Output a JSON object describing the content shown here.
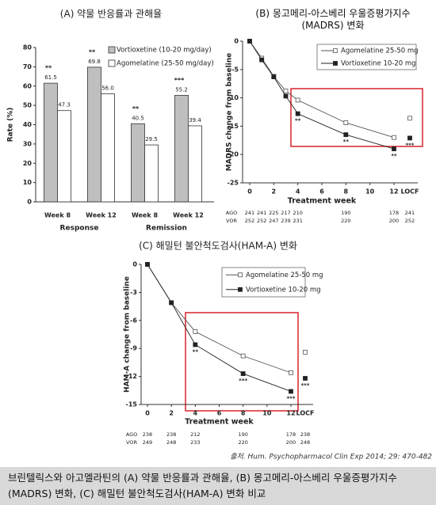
{
  "chart_data": [
    {
      "type": "bar",
      "title": "(A) 약물 반응률과 관해율",
      "y_label": "Rate (%)",
      "categories": [
        "Week 8",
        "Week 12",
        "Week 8",
        "Week 12"
      ],
      "groups": [
        "Response",
        "Remission"
      ],
      "series": [
        {
          "name": "Vortioxetine (10-20 mg/day)",
          "color": "#bfbfbf",
          "values": [
            61.5,
            69.8,
            40.5,
            55.2
          ],
          "significance": [
            "**",
            "**",
            "**",
            "***"
          ]
        },
        {
          "name": "Agomelatine (25-50 mg/day)",
          "color": "#ffffff",
          "values": [
            47.3,
            56.0,
            29.5,
            39.4
          ],
          "value_labels": [
            "47.3",
            "56.0",
            "29.5",
            "39.4"
          ]
        }
      ],
      "ylim": [
        0,
        80
      ],
      "yticks": [
        0,
        10,
        20,
        30,
        40,
        50,
        60,
        70,
        80
      ]
    },
    {
      "type": "line",
      "title": "(B) 몽고메리-아스베리 우울증평가지수 (MADRS) 변화",
      "x_label": "Treatment week",
      "y_label": "MADRS change from baseline",
      "x": [
        0,
        1,
        2,
        3,
        4,
        8,
        12
      ],
      "xlim": [
        0,
        12
      ],
      "xticks": [
        0,
        2,
        4,
        6,
        8,
        10,
        12
      ],
      "locf_label": "LOCF",
      "ylim": [
        -25,
        0
      ],
      "yticks": [
        0,
        -5,
        -10,
        -15,
        -20,
        -25
      ],
      "series": [
        {
          "name": "Agomelatine 25-50 mg",
          "color": "#555555",
          "marker": "open",
          "values": [
            0,
            -3,
            -6.2,
            -8.8,
            -10.4,
            -14.4,
            -17
          ],
          "locf": -13.6
        },
        {
          "name": "Vortioxetine 10-20 mg",
          "color": "#222222",
          "marker": "filled",
          "values": [
            0,
            -3.3,
            -6.3,
            -9.7,
            -12.8,
            -16.5,
            -19
          ],
          "locf": -17.1,
          "annotations": [
            {
              "x": 4,
              "text": "**"
            },
            {
              "x": 8,
              "text": "**"
            },
            {
              "x": 12,
              "text": "**"
            }
          ],
          "locf_annotation": "***"
        }
      ],
      "n_table": {
        "x": [
          0,
          1,
          2,
          3,
          4,
          8,
          12
        ],
        "rows": [
          {
            "name": "AGO",
            "values": [
              241,
              241,
              225,
              217,
              210,
              190,
              178
            ],
            "locf": 241
          },
          {
            "name": "VOR",
            "values": [
              252,
              252,
              247,
              239,
              231,
              220,
              200
            ],
            "locf": 252
          }
        ]
      }
    },
    {
      "type": "line",
      "title": "(C) 해밀턴 불안척도검사(HAM-A) 변화",
      "x_label": "Treatment week",
      "y_label": "HAM-A change from baseline",
      "x": [
        0,
        2,
        4,
        8,
        12
      ],
      "xlim": [
        0,
        12
      ],
      "xticks": [
        0,
        2,
        4,
        6,
        8,
        10,
        12
      ],
      "locf_label": "LOCF",
      "ylim": [
        -15,
        0
      ],
      "yticks": [
        0,
        -3,
        -6,
        -9,
        -12,
        -15
      ],
      "series": [
        {
          "name": "Agomelatine 25-50 mg",
          "color": "#555555",
          "marker": "open",
          "values": [
            0,
            -4.1,
            -7.2,
            -9.8,
            -11.6
          ],
          "locf": -9.4
        },
        {
          "name": "Vortioxetine 10-20 mg",
          "color": "#222222",
          "marker": "filled",
          "values": [
            0,
            -4.1,
            -8.6,
            -11.7,
            -13.6
          ],
          "locf": -12.2,
          "annotations": [
            {
              "x": 4,
              "text": "**"
            },
            {
              "x": 8,
              "text": "***"
            },
            {
              "x": 12,
              "text": "***"
            }
          ],
          "locf_annotation": "***"
        }
      ],
      "n_table": {
        "x": [
          0,
          2,
          4,
          8,
          12
        ],
        "rows": [
          {
            "name": "AGO",
            "values": [
              238,
              238,
              212,
              190,
              178
            ],
            "locf": 238
          },
          {
            "name": "VOR",
            "values": [
              249,
              248,
              233,
              220,
              200
            ],
            "locf": 248
          }
        ]
      }
    }
  ],
  "source": "출처. Hum. Psychopharmacol Clin Exp 2014; 29: 470-482",
  "caption": "브린텔릭스와 아고멜라틴의 (A) 약물 반응률과 관해율, (B) 몽고메리-아스베리 우울증평가지수(MADRS) 변화, (C) 해밀턴 불안척도검사(HAM-A) 변화 비교"
}
